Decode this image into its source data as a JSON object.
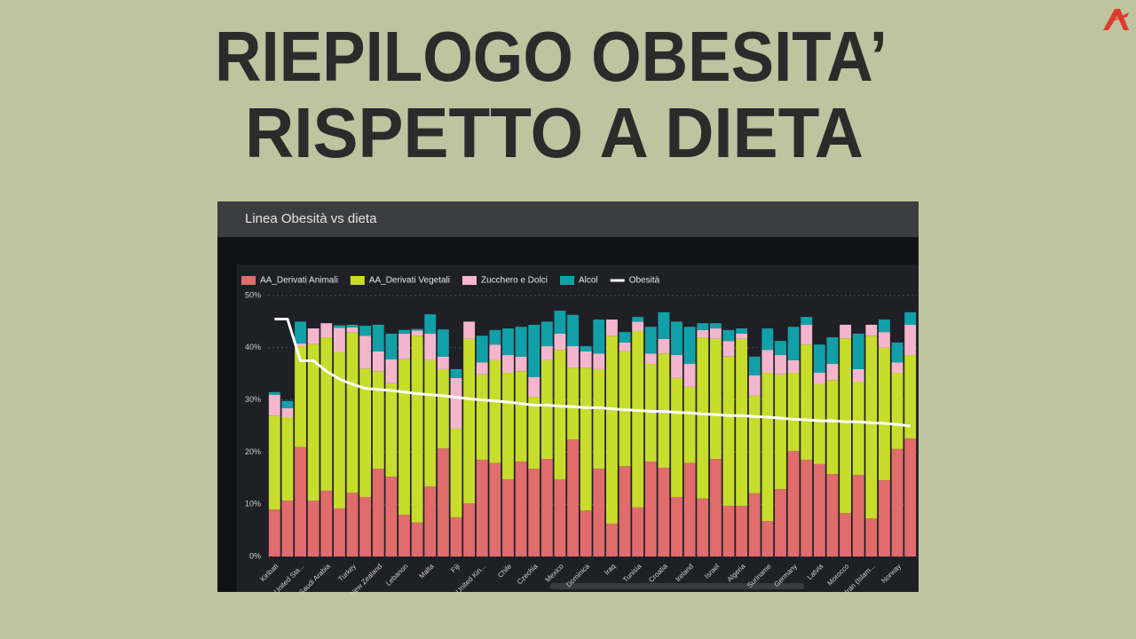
{
  "slide_title": [
    "RIEPILOGO OBESITA’",
    "RISPETTO A DIETA"
  ],
  "chart_data": {
    "type": "bar",
    "stacked": true,
    "title": "Linea Obesità vs dieta",
    "categories": [
      "Kiribati",
      null,
      "United Sta...",
      null,
      "Saudi Arabia",
      null,
      "Turkey",
      null,
      "New Zealand",
      null,
      "Lebanon",
      null,
      "Malta",
      null,
      "Fiji",
      null,
      "United Kin...",
      null,
      "Chile",
      null,
      "Czechia",
      null,
      "Mexico",
      null,
      "Dominica",
      null,
      "Iraq",
      null,
      "Tunisia",
      null,
      "Croatia",
      null,
      "Ireland",
      null,
      "Israel",
      null,
      "Algeria",
      null,
      "Suriname",
      null,
      "Germany",
      null,
      "Latvia",
      null,
      "Morocco",
      null,
      "Iran (Islam...",
      null,
      "Norway",
      null
    ],
    "series": [
      {
        "name": "AA_Derivati Animali",
        "color": "#e06c6c",
        "values": [
          9,
          10.7,
          21,
          10.7,
          12.6,
          9.2,
          12.2,
          11.4,
          16.8,
          15.3,
          8,
          6.5,
          13.4,
          20.7,
          7.5,
          10.2,
          18.5,
          17.9,
          14.8,
          18.2,
          16.8,
          18.7,
          14.8,
          22.4,
          8.8,
          16.8,
          6.3,
          17.3,
          9.4,
          18.2,
          17,
          11.4,
          17.9,
          11.1,
          18.7,
          9.7,
          9.7,
          12.1,
          6.8,
          12.9,
          20.2,
          18.5,
          17.7,
          15.8,
          8.3,
          15.6,
          7.3,
          14.6,
          20.6,
          22.6
        ]
      },
      {
        "name": "AA_Derivati Vegetali",
        "color": "#c8dc2c",
        "values": [
          18,
          16,
          19.3,
          30,
          29.4,
          30,
          30.7,
          24.6,
          18.7,
          17.9,
          29.8,
          35.8,
          24.2,
          15.2,
          17,
          31.5,
          16.4,
          19.7,
          20.4,
          17.3,
          13.8,
          18.9,
          24.8,
          13.8,
          27.4,
          19.1,
          36,
          22,
          33.8,
          18.7,
          21.9,
          22.8,
          14.6,
          30.9,
          23,
          28.6,
          32,
          18.7,
          28.4,
          22,
          15,
          22.1,
          15.3,
          18,
          33.5,
          17.9,
          35,
          25.4,
          14.6,
          16
        ]
      },
      {
        "name": "Zucchero e Dolci",
        "color": "#f4b6cc",
        "values": [
          4,
          1.7,
          0.5,
          3,
          2.7,
          4.6,
          1,
          6.3,
          3.8,
          4.6,
          4.9,
          1,
          5.1,
          2.4,
          9.7,
          3.3,
          2.3,
          3,
          3.4,
          2.8,
          3.8,
          2.7,
          3.1,
          4.1,
          3.1,
          3,
          3.1,
          1.7,
          1.8,
          2,
          2.8,
          4.4,
          4.4,
          1.4,
          2,
          3,
          1,
          3.9,
          4.4,
          3.7,
          2.4,
          3.8,
          2.2,
          3.1,
          2.6,
          2.4,
          2.1,
          3,
          2,
          5.8
        ]
      },
      {
        "name": "Alcol",
        "color": "#12a0a8",
        "values": [
          0.5,
          1.4,
          4.2,
          0,
          0,
          0.5,
          0.5,
          1.9,
          5.1,
          4.9,
          0.7,
          0.3,
          3.7,
          5.2,
          1.7,
          0,
          5.1,
          2.8,
          5.1,
          5.7,
          10,
          4.7,
          4.4,
          6,
          1,
          6.5,
          0,
          2,
          0.9,
          5.1,
          5.1,
          6.4,
          7.1,
          1.3,
          1,
          2.1,
          1,
          3.6,
          4.1,
          2.7,
          6.4,
          1.5,
          5.4,
          5.1,
          0,
          6.8,
          0,
          2.4,
          3.8,
          2.4
        ]
      },
      {
        "name": "Obesità",
        "type": "line",
        "color": "#ffffff",
        "values": [
          45.5,
          45.5,
          37.5,
          37.5,
          35.5,
          34,
          33,
          32.2,
          32,
          31.8,
          31.5,
          31.2,
          31,
          30.8,
          30.5,
          30.2,
          30,
          29.8,
          29.6,
          29.3,
          29,
          29,
          28.8,
          28.7,
          28.5,
          28.5,
          28.3,
          28.1,
          28,
          27.8,
          27.8,
          27.6,
          27.5,
          27.3,
          27.2,
          27,
          27,
          26.8,
          26.7,
          26.5,
          26.3,
          26.2,
          26,
          26,
          25.8,
          25.8,
          25.6,
          25.5,
          25.3,
          25
        ]
      }
    ],
    "ylim": [
      0,
      50
    ],
    "yticks": [
      {
        "value": 0,
        "label": "0%"
      },
      {
        "value": 10,
        "label": "10%"
      },
      {
        "value": 20,
        "label": "20%"
      },
      {
        "value": 30,
        "label": "30%"
      },
      {
        "value": 40,
        "label": "40%"
      },
      {
        "value": 50,
        "label": "50%"
      }
    ],
    "grid": true,
    "legend": "top"
  }
}
